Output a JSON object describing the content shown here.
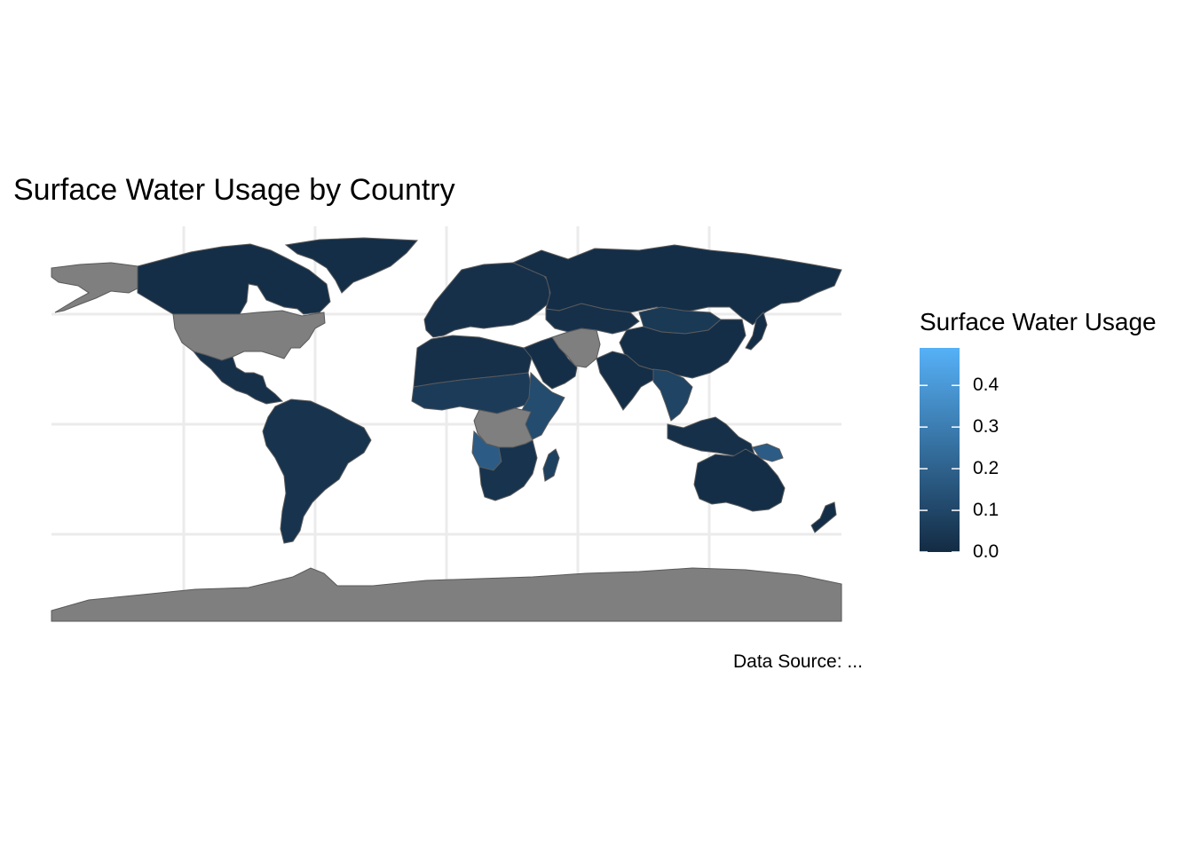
{
  "title": "Surface Water Usage by Country",
  "caption": "Data Source: ...",
  "colors": {
    "low": "#132b43",
    "high": "#56b1f7",
    "missing": "#7f7f7f",
    "border": "#5a5a5a",
    "grid": "#ebebeb"
  },
  "legend": {
    "title": "Surface Water Usage",
    "range": [
      0,
      0.49
    ],
    "ticks": [
      {
        "value": 0.0,
        "label": "0.0"
      },
      {
        "value": 0.1,
        "label": "0.1"
      },
      {
        "value": 0.2,
        "label": "0.2"
      },
      {
        "value": 0.3,
        "label": "0.3"
      },
      {
        "value": 0.4,
        "label": "0.4"
      }
    ]
  },
  "regions": [
    {
      "name": "canada",
      "value": 0.01
    },
    {
      "name": "usa",
      "value": null
    },
    {
      "name": "alaska",
      "value": null
    },
    {
      "name": "greenland",
      "value": 0.01
    },
    {
      "name": "mexico-central-america",
      "value": 0.02
    },
    {
      "name": "south-america",
      "value": 0.03
    },
    {
      "name": "europe",
      "value": 0.02
    },
    {
      "name": "russia",
      "value": 0.01
    },
    {
      "name": "north-africa",
      "value": 0.02
    },
    {
      "name": "sahel",
      "value": 0.06
    },
    {
      "name": "east-africa",
      "value": 0.12
    },
    {
      "name": "central-africa",
      "value": null
    },
    {
      "name": "southern-africa-west",
      "value": 0.18
    },
    {
      "name": "southern-africa",
      "value": 0.03
    },
    {
      "name": "madagascar",
      "value": 0.08
    },
    {
      "name": "middle-east",
      "value": 0.01
    },
    {
      "name": "iran-afghanistan",
      "value": null
    },
    {
      "name": "central-asia",
      "value": 0.02
    },
    {
      "name": "mongolia",
      "value": 0.05
    },
    {
      "name": "china",
      "value": 0.01
    },
    {
      "name": "india",
      "value": 0.01
    },
    {
      "name": "southeast-asia",
      "value": 0.09
    },
    {
      "name": "japan",
      "value": 0.01
    },
    {
      "name": "indonesia",
      "value": 0.02
    },
    {
      "name": "new-guinea",
      "value": 0.18
    },
    {
      "name": "australia",
      "value": 0.01
    },
    {
      "name": "new-zealand",
      "value": 0.01
    },
    {
      "name": "antarctica",
      "value": null
    }
  ]
}
